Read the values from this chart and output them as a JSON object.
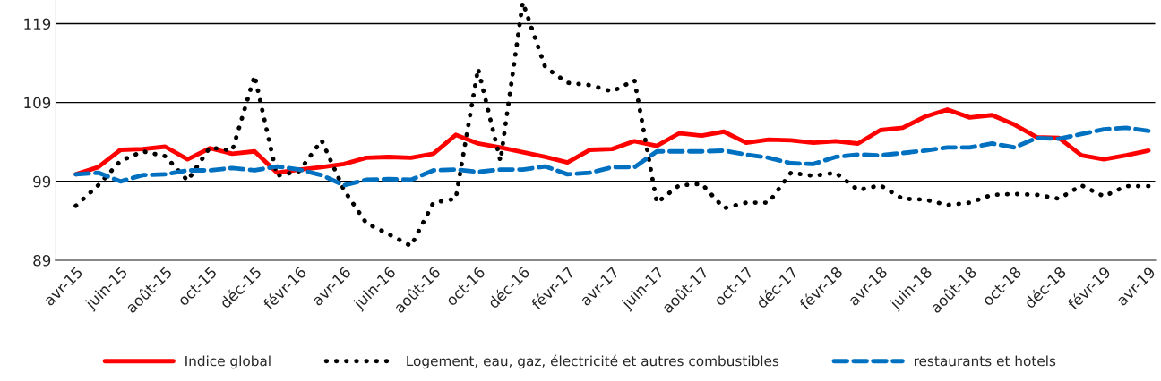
{
  "chart_data": {
    "type": "line",
    "categories": [
      "avr-15",
      null,
      "juin-15",
      null,
      "août-15",
      null,
      "oct-15",
      null,
      "déc-15",
      null,
      "févr-16",
      null,
      "avr-16",
      null,
      "juin-16",
      null,
      "août-16",
      null,
      "oct-16",
      null,
      "déc-16",
      null,
      "févr-17",
      null,
      "avr-17",
      null,
      "juin-17",
      null,
      "août-17",
      null,
      "oct-17",
      null,
      "déc-17",
      null,
      "févr-18",
      null,
      "avr-18",
      null,
      "juin-18",
      null,
      "août-18",
      null,
      "oct-18",
      null,
      "déc-18",
      null,
      "févr-19",
      null,
      "avr-19"
    ],
    "series": [
      {
        "name": "Indice global",
        "color": "#ff0000",
        "line_style": "solid",
        "values": [
          99.9,
          100.8,
          103.0,
          103.1,
          103.4,
          101.8,
          103.2,
          102.5,
          102.8,
          100.1,
          100.5,
          100.8,
          101.2,
          102.0,
          102.1,
          102.0,
          102.5,
          104.9,
          103.8,
          103.3,
          102.7,
          102.1,
          101.4,
          103.0,
          103.1,
          104.1,
          103.5,
          105.1,
          104.8,
          105.3,
          103.9,
          104.3,
          104.2,
          103.9,
          104.1,
          103.8,
          105.5,
          105.8,
          107.2,
          108.1,
          107.1,
          107.4,
          106.2,
          104.6,
          104.5,
          102.3,
          101.8,
          102.3,
          102.9
        ]
      },
      {
        "name": "Logement, eau, gaz, électricité et autres combustibles",
        "color": "#000000",
        "line_style": "dotted",
        "values": [
          95.9,
          98.5,
          101.6,
          102.8,
          102.2,
          99.1,
          103.3,
          102.9,
          112.4,
          99.7,
          100.3,
          104.2,
          97.9,
          93.7,
          92.3,
          90.8,
          96.3,
          96.8,
          113.3,
          101.6,
          121.7,
          113.5,
          111.5,
          111.2,
          110.4,
          111.8,
          96.3,
          98.5,
          98.7,
          95.6,
          96.3,
          96.3,
          100.1,
          99.7,
          100.1,
          97.9,
          98.5,
          96.8,
          96.7,
          96.0,
          96.3,
          97.3,
          97.4,
          97.3,
          96.8,
          98.5,
          97.1,
          98.4,
          98.4
        ]
      },
      {
        "name": "restaurants et hotels",
        "color": "#0070c0",
        "line_style": "dashed",
        "values": [
          99.9,
          100.1,
          99.0,
          99.8,
          99.9,
          100.4,
          100.4,
          100.7,
          100.4,
          100.9,
          100.5,
          99.8,
          98.5,
          99.2,
          99.3,
          99.2,
          100.4,
          100.5,
          100.2,
          100.5,
          100.5,
          100.9,
          99.9,
          100.1,
          100.8,
          100.8,
          102.8,
          102.8,
          102.8,
          102.9,
          102.4,
          102.0,
          101.3,
          101.2,
          102.1,
          102.4,
          102.3,
          102.6,
          102.9,
          103.3,
          103.3,
          103.8,
          103.3,
          104.5,
          104.4,
          105.0,
          105.6,
          105.8,
          105.4
        ]
      }
    ],
    "ylim": [
      89,
      122
    ],
    "yticks": [
      89,
      99,
      109,
      119
    ],
    "grid": "y",
    "legend": "bottom",
    "marker": "none"
  }
}
